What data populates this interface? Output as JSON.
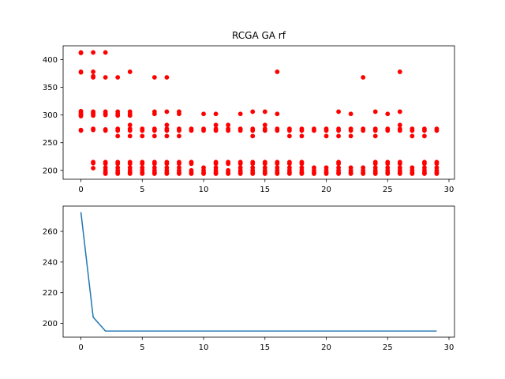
{
  "chart_data": [
    {
      "type": "scatter",
      "title": "RCGA GA rf",
      "xlabel": "",
      "ylabel": "",
      "xlim": [
        -1.45,
        30.45
      ],
      "ylim": [
        184,
        425
      ],
      "xticks": [
        0,
        5,
        10,
        15,
        20,
        25,
        30
      ],
      "yticks": [
        200,
        250,
        300,
        350,
        400
      ],
      "grid": false,
      "marker_color": "#ff0000",
      "points": [
        [
          0,
          412
        ],
        [
          0,
          413
        ],
        [
          0,
          378
        ],
        [
          0,
          377
        ],
        [
          0,
          307
        ],
        [
          0,
          305
        ],
        [
          0,
          302
        ],
        [
          0,
          300
        ],
        [
          0,
          298
        ],
        [
          0,
          273
        ],
        [
          0,
          272
        ],
        [
          1,
          413
        ],
        [
          1,
          378
        ],
        [
          1,
          370
        ],
        [
          1,
          368
        ],
        [
          1,
          306
        ],
        [
          1,
          304
        ],
        [
          1,
          302
        ],
        [
          1,
          299
        ],
        [
          1,
          275
        ],
        [
          1,
          273
        ],
        [
          1,
          215
        ],
        [
          1,
          213
        ],
        [
          1,
          204
        ],
        [
          2,
          413
        ],
        [
          2,
          368
        ],
        [
          2,
          306
        ],
        [
          2,
          303
        ],
        [
          2,
          300
        ],
        [
          2,
          274
        ],
        [
          2,
          272
        ],
        [
          2,
          215
        ],
        [
          2,
          212
        ],
        [
          2,
          205
        ],
        [
          2,
          200
        ],
        [
          2,
          196
        ],
        [
          2,
          194
        ],
        [
          3,
          368
        ],
        [
          3,
          306
        ],
        [
          3,
          302
        ],
        [
          3,
          299
        ],
        [
          3,
          275
        ],
        [
          3,
          272
        ],
        [
          3,
          262
        ],
        [
          3,
          215
        ],
        [
          3,
          212
        ],
        [
          3,
          205
        ],
        [
          3,
          200
        ],
        [
          3,
          196
        ],
        [
          3,
          194
        ],
        [
          4,
          378
        ],
        [
          4,
          306
        ],
        [
          4,
          302
        ],
        [
          4,
          299
        ],
        [
          4,
          282
        ],
        [
          4,
          275
        ],
        [
          4,
          272
        ],
        [
          4,
          262
        ],
        [
          4,
          215
        ],
        [
          4,
          212
        ],
        [
          4,
          205
        ],
        [
          4,
          200
        ],
        [
          4,
          196
        ],
        [
          4,
          194
        ],
        [
          5,
          275
        ],
        [
          5,
          272
        ],
        [
          5,
          262
        ],
        [
          5,
          215
        ],
        [
          5,
          212
        ],
        [
          5,
          205
        ],
        [
          5,
          200
        ],
        [
          5,
          196
        ],
        [
          5,
          194
        ],
        [
          6,
          368
        ],
        [
          6,
          306
        ],
        [
          6,
          302
        ],
        [
          6,
          275
        ],
        [
          6,
          272
        ],
        [
          6,
          262
        ],
        [
          6,
          215
        ],
        [
          6,
          212
        ],
        [
          6,
          205
        ],
        [
          6,
          200
        ],
        [
          6,
          196
        ],
        [
          6,
          194
        ],
        [
          7,
          368
        ],
        [
          7,
          306
        ],
        [
          7,
          282
        ],
        [
          7,
          275
        ],
        [
          7,
          272
        ],
        [
          7,
          262
        ],
        [
          7,
          215
        ],
        [
          7,
          212
        ],
        [
          7,
          205
        ],
        [
          7,
          200
        ],
        [
          7,
          196
        ],
        [
          7,
          194
        ],
        [
          8,
          306
        ],
        [
          8,
          302
        ],
        [
          8,
          275
        ],
        [
          8,
          272
        ],
        [
          8,
          262
        ],
        [
          8,
          215
        ],
        [
          8,
          212
        ],
        [
          8,
          205
        ],
        [
          8,
          200
        ],
        [
          8,
          196
        ],
        [
          8,
          194
        ],
        [
          9,
          275
        ],
        [
          9,
          272
        ],
        [
          9,
          215
        ],
        [
          9,
          212
        ],
        [
          9,
          200
        ],
        [
          9,
          196
        ],
        [
          9,
          194
        ],
        [
          10,
          302
        ],
        [
          10,
          275
        ],
        [
          10,
          272
        ],
        [
          10,
          205
        ],
        [
          10,
          200
        ],
        [
          10,
          196
        ],
        [
          10,
          194
        ],
        [
          11,
          302
        ],
        [
          11,
          282
        ],
        [
          11,
          275
        ],
        [
          11,
          272
        ],
        [
          11,
          215
        ],
        [
          11,
          212
        ],
        [
          11,
          205
        ],
        [
          11,
          200
        ],
        [
          11,
          196
        ],
        [
          11,
          194
        ],
        [
          12,
          282
        ],
        [
          12,
          275
        ],
        [
          12,
          272
        ],
        [
          12,
          215
        ],
        [
          12,
          212
        ],
        [
          12,
          200
        ],
        [
          12,
          196
        ],
        [
          12,
          194
        ],
        [
          13,
          302
        ],
        [
          13,
          275
        ],
        [
          13,
          272
        ],
        [
          13,
          215
        ],
        [
          13,
          212
        ],
        [
          13,
          205
        ],
        [
          13,
          200
        ],
        [
          13,
          196
        ],
        [
          13,
          194
        ],
        [
          14,
          306
        ],
        [
          14,
          275
        ],
        [
          14,
          272
        ],
        [
          14,
          262
        ],
        [
          14,
          215
        ],
        [
          14,
          212
        ],
        [
          14,
          205
        ],
        [
          14,
          200
        ],
        [
          14,
          196
        ],
        [
          14,
          194
        ],
        [
          15,
          306
        ],
        [
          15,
          282
        ],
        [
          15,
          275
        ],
        [
          15,
          272
        ],
        [
          15,
          215
        ],
        [
          15,
          212
        ],
        [
          15,
          205
        ],
        [
          15,
          200
        ],
        [
          15,
          196
        ],
        [
          15,
          194
        ],
        [
          16,
          378
        ],
        [
          16,
          302
        ],
        [
          16,
          275
        ],
        [
          16,
          272
        ],
        [
          16,
          215
        ],
        [
          16,
          212
        ],
        [
          16,
          205
        ],
        [
          16,
          200
        ],
        [
          16,
          196
        ],
        [
          16,
          194
        ],
        [
          17,
          275
        ],
        [
          17,
          272
        ],
        [
          17,
          262
        ],
        [
          17,
          215
        ],
        [
          17,
          212
        ],
        [
          17,
          205
        ],
        [
          17,
          200
        ],
        [
          17,
          196
        ],
        [
          17,
          194
        ],
        [
          18,
          275
        ],
        [
          18,
          272
        ],
        [
          18,
          262
        ],
        [
          18,
          215
        ],
        [
          18,
          212
        ],
        [
          18,
          205
        ],
        [
          18,
          200
        ],
        [
          18,
          196
        ],
        [
          18,
          194
        ],
        [
          19,
          275
        ],
        [
          19,
          272
        ],
        [
          19,
          205
        ],
        [
          19,
          200
        ],
        [
          19,
          196
        ],
        [
          19,
          194
        ],
        [
          20,
          275
        ],
        [
          20,
          272
        ],
        [
          20,
          262
        ],
        [
          20,
          205
        ],
        [
          20,
          200
        ],
        [
          20,
          196
        ],
        [
          20,
          194
        ],
        [
          21,
          306
        ],
        [
          21,
          275
        ],
        [
          21,
          272
        ],
        [
          21,
          262
        ],
        [
          21,
          215
        ],
        [
          21,
          212
        ],
        [
          21,
          205
        ],
        [
          21,
          200
        ],
        [
          21,
          196
        ],
        [
          21,
          194
        ],
        [
          22,
          302
        ],
        [
          22,
          275
        ],
        [
          22,
          272
        ],
        [
          22,
          262
        ],
        [
          22,
          205
        ],
        [
          22,
          200
        ],
        [
          22,
          196
        ],
        [
          22,
          194
        ],
        [
          23,
          368
        ],
        [
          23,
          275
        ],
        [
          23,
          272
        ],
        [
          23,
          205
        ],
        [
          23,
          200
        ],
        [
          23,
          196
        ],
        [
          23,
          194
        ],
        [
          24,
          306
        ],
        [
          24,
          275
        ],
        [
          24,
          272
        ],
        [
          24,
          262
        ],
        [
          24,
          215
        ],
        [
          24,
          212
        ],
        [
          24,
          205
        ],
        [
          24,
          200
        ],
        [
          24,
          196
        ],
        [
          24,
          194
        ],
        [
          25,
          302
        ],
        [
          25,
          275
        ],
        [
          25,
          272
        ],
        [
          25,
          215
        ],
        [
          25,
          212
        ],
        [
          25,
          205
        ],
        [
          25,
          200
        ],
        [
          25,
          196
        ],
        [
          25,
          194
        ],
        [
          26,
          378
        ],
        [
          26,
          306
        ],
        [
          26,
          282
        ],
        [
          26,
          275
        ],
        [
          26,
          272
        ],
        [
          26,
          215
        ],
        [
          26,
          212
        ],
        [
          26,
          205
        ],
        [
          26,
          200
        ],
        [
          26,
          196
        ],
        [
          26,
          194
        ],
        [
          27,
          275
        ],
        [
          27,
          272
        ],
        [
          27,
          262
        ],
        [
          27,
          205
        ],
        [
          27,
          200
        ],
        [
          27,
          196
        ],
        [
          27,
          194
        ],
        [
          28,
          275
        ],
        [
          28,
          272
        ],
        [
          28,
          262
        ],
        [
          28,
          215
        ],
        [
          28,
          212
        ],
        [
          28,
          205
        ],
        [
          28,
          200
        ],
        [
          28,
          196
        ],
        [
          28,
          194
        ],
        [
          29,
          275
        ],
        [
          29,
          272
        ],
        [
          29,
          215
        ],
        [
          29,
          212
        ],
        [
          29,
          205
        ],
        [
          29,
          200
        ],
        [
          29,
          196
        ],
        [
          29,
          194
        ]
      ]
    },
    {
      "type": "line",
      "title": "",
      "xlabel": "",
      "ylabel": "",
      "xlim": [
        -1.45,
        30.45
      ],
      "ylim": [
        191,
        276.5
      ],
      "xticks": [
        0,
        5,
        10,
        15,
        20,
        25,
        30
      ],
      "yticks": [
        200,
        220,
        240,
        260
      ],
      "grid": false,
      "line_color": "#1f77b4",
      "x": [
        0,
        1,
        2,
        3,
        4,
        5,
        6,
        7,
        8,
        9,
        10,
        11,
        12,
        13,
        14,
        15,
        16,
        17,
        18,
        19,
        20,
        21,
        22,
        23,
        24,
        25,
        26,
        27,
        28,
        29
      ],
      "y": [
        272.5,
        204,
        195,
        195,
        195,
        195,
        195,
        195,
        195,
        195,
        195,
        195,
        195,
        195,
        195,
        195,
        195,
        195,
        195,
        195,
        195,
        195,
        195,
        195,
        195,
        195,
        195,
        195,
        195,
        195
      ]
    }
  ]
}
